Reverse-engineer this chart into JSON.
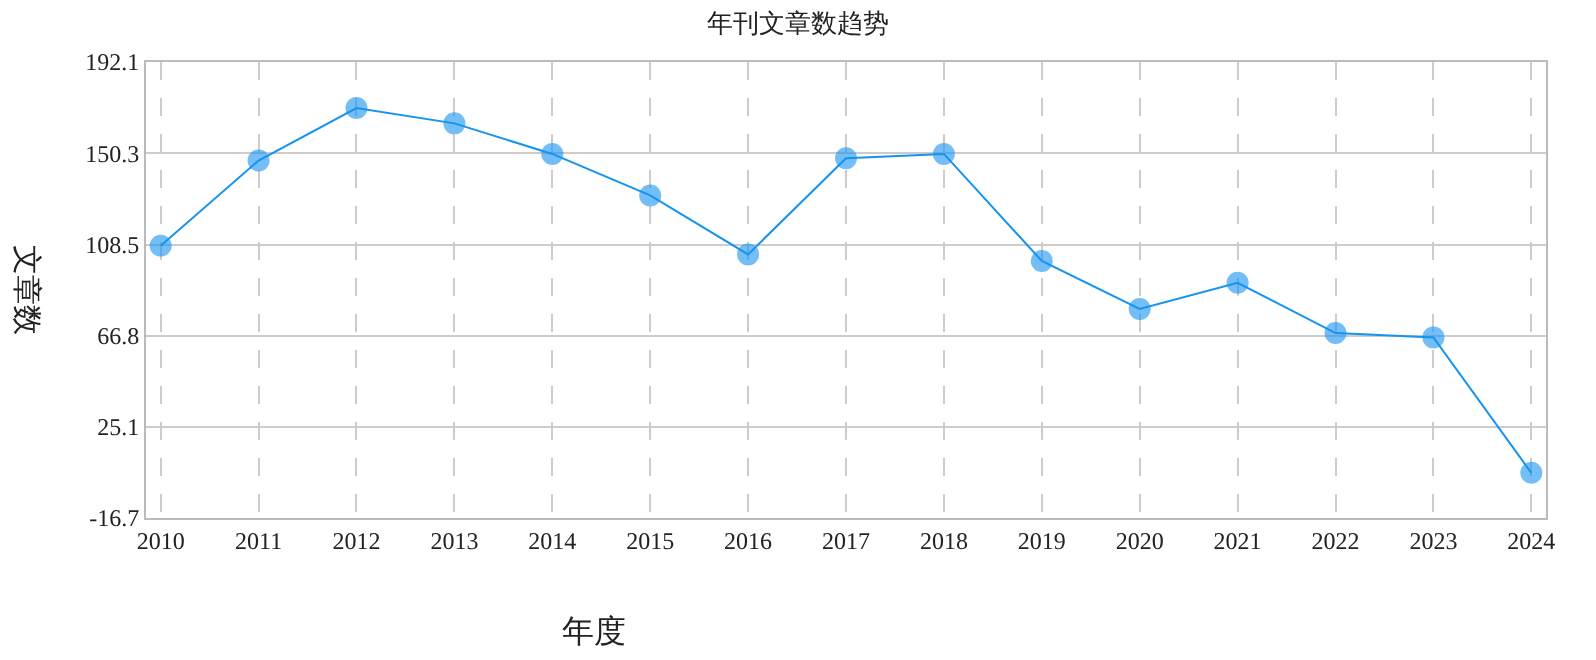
{
  "chart_data": {
    "type": "line",
    "title": "年刊文章数趋势",
    "xlabel": "年度",
    "ylabel": "文章数",
    "categories": [
      "2010",
      "2011",
      "2012",
      "2013",
      "2014",
      "2015",
      "2016",
      "2017",
      "2018",
      "2019",
      "2020",
      "2021",
      "2022",
      "2023",
      "2024"
    ],
    "series": [
      {
        "color": "#1593f0",
        "values": [
          108,
          147,
          171,
          164,
          150,
          131,
          104,
          148,
          150,
          101,
          79,
          91,
          68,
          66,
          4
        ]
      }
    ],
    "ylim": [
      -16.7,
      192.1
    ],
    "yticks": [
      -16.7,
      25.1,
      66.8,
      108.5,
      150.3,
      192.1
    ],
    "grid": true,
    "marker": "circle",
    "line_style": "solid",
    "legend": false
  }
}
